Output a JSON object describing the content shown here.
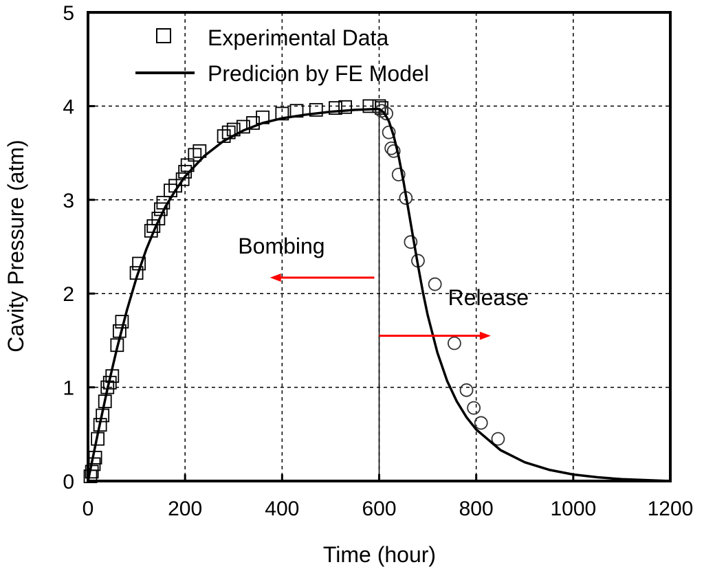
{
  "chart_data": {
    "type": "scatter",
    "title": "",
    "xlabel": "Time (hour)",
    "ylabel": "Cavity Pressure (atm)",
    "xlim": [
      0,
      1200
    ],
    "ylim": [
      0,
      5
    ],
    "xticks": [
      0,
      200,
      400,
      600,
      800,
      1000,
      1200
    ],
    "yticks": [
      0,
      1,
      2,
      3,
      4,
      5
    ],
    "grid": true,
    "legend_position": "top-left",
    "legend": [
      {
        "label": "Experimental Data",
        "marker": "square"
      },
      {
        "label": "Predicion by FE Model",
        "marker": "line"
      }
    ],
    "series": [
      {
        "name": "Experimental Data",
        "marker": "square",
        "x": [
          5,
          8,
          12,
          15,
          20,
          25,
          30,
          35,
          40,
          45,
          50,
          60,
          65,
          70,
          100,
          105,
          130,
          135,
          145,
          150,
          155,
          170,
          180,
          195,
          200,
          205,
          220,
          230,
          280,
          290,
          300,
          320,
          340,
          360,
          400,
          430,
          470,
          510,
          530,
          580,
          600,
          605
        ],
        "y": [
          0.05,
          0.1,
          0.18,
          0.25,
          0.45,
          0.6,
          0.7,
          0.85,
          1.0,
          1.05,
          1.12,
          1.45,
          1.6,
          1.7,
          2.22,
          2.32,
          2.67,
          2.72,
          2.8,
          2.9,
          2.97,
          3.1,
          3.15,
          3.22,
          3.3,
          3.37,
          3.48,
          3.52,
          3.68,
          3.72,
          3.75,
          3.78,
          3.82,
          3.88,
          3.92,
          3.95,
          3.96,
          3.98,
          3.99,
          4.0,
          4.0,
          3.98
        ]
      },
      {
        "name": "",
        "marker": "circle",
        "x": [
          605,
          615,
          620,
          625,
          630,
          640,
          655,
          665,
          680,
          715,
          755,
          780,
          795,
          810,
          845
        ],
        "y": [
          3.95,
          3.92,
          3.72,
          3.55,
          3.52,
          3.27,
          3.02,
          2.55,
          2.35,
          2.1,
          1.47,
          0.97,
          0.78,
          0.62,
          0.45
        ]
      },
      {
        "name": "Predicion by FE Model",
        "marker": "line",
        "x": [
          0,
          20,
          40,
          60,
          80,
          100,
          120,
          140,
          160,
          180,
          200,
          240,
          280,
          320,
          360,
          400,
          450,
          500,
          550,
          600,
          610,
          620,
          630,
          640,
          650,
          660,
          670,
          680,
          690,
          700,
          720,
          740,
          760,
          780,
          800,
          850,
          900,
          950,
          1000,
          1050,
          1100,
          1150,
          1200
        ],
        "y": [
          0,
          0.5,
          0.98,
          1.42,
          1.82,
          2.17,
          2.47,
          2.72,
          2.93,
          3.1,
          3.25,
          3.47,
          3.63,
          3.74,
          3.82,
          3.87,
          3.91,
          3.94,
          3.96,
          3.97,
          3.93,
          3.84,
          3.68,
          3.47,
          3.2,
          2.9,
          2.6,
          2.3,
          2.02,
          1.77,
          1.37,
          1.07,
          0.85,
          0.68,
          0.55,
          0.33,
          0.2,
          0.12,
          0.07,
          0.04,
          0.02,
          0.01,
          0.0
        ]
      }
    ],
    "annotations": [
      {
        "text": "Bombing",
        "arrow": "left",
        "arrow_from": [
          590,
          2.17
        ],
        "arrow_to": [
          375,
          2.17
        ],
        "label_at": [
          420,
          2.5
        ],
        "color": "#ff0000"
      },
      {
        "text": "Release",
        "arrow": "right",
        "arrow_from": [
          600,
          1.55
        ],
        "arrow_to": [
          830,
          1.55
        ],
        "label_at": [
          825,
          1.95
        ],
        "color": "#ff0000"
      }
    ],
    "divider_x": 600
  }
}
